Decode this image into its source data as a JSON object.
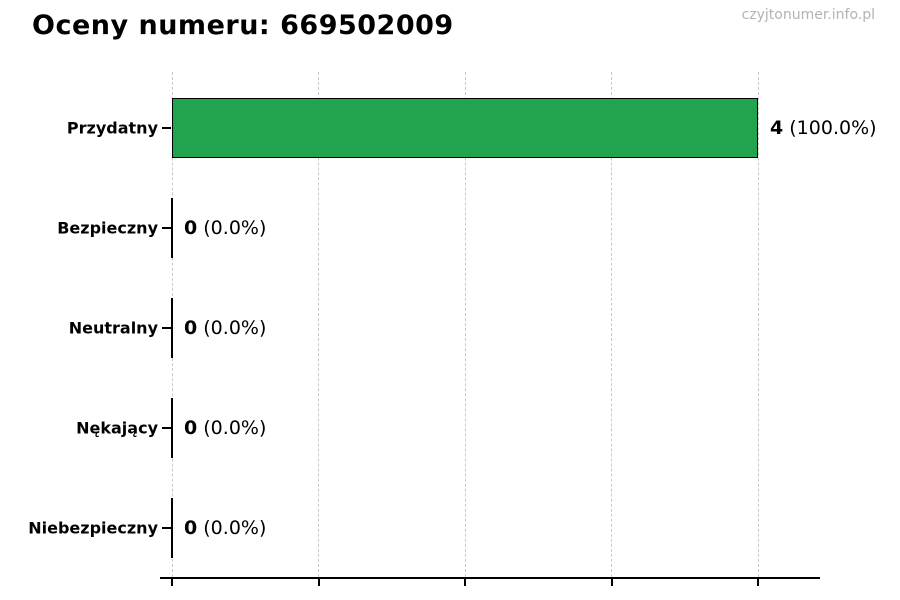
{
  "watermark": "czyjtonumer.info.pl",
  "chart_data": {
    "type": "bar",
    "orientation": "horizontal",
    "title": "Oceny numeru: 669502009",
    "categories": [
      "Przydatny",
      "Bezpieczny",
      "Neutralny",
      "Nękający",
      "Niebezpieczny"
    ],
    "values": [
      4,
      0,
      0,
      0,
      0
    ],
    "percentages": [
      100.0,
      0.0,
      0.0,
      0.0,
      0.0
    ],
    "count_labels": [
      "4",
      "0",
      "0",
      "0",
      "0"
    ],
    "pct_labels": [
      "(100.0%)",
      "(0.0%)",
      "(0.0%)",
      "(0.0%)",
      "(0.0%)"
    ],
    "xlabel": "",
    "ylabel": "",
    "xlim": [
      0,
      4.42
    ],
    "xticks": [
      0,
      1,
      2,
      3,
      4
    ],
    "grid": "vertical-dashed",
    "legend": "none",
    "bar_color": "#22a34f",
    "bar_edge_color": "#000000"
  }
}
